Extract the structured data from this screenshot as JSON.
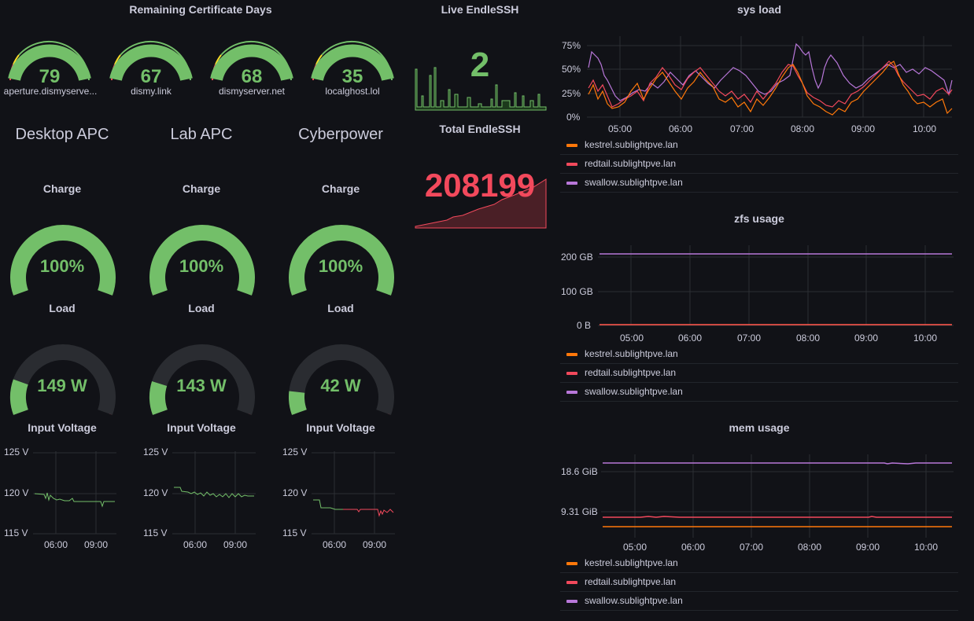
{
  "cert": {
    "title": "Remaining Certificate Days",
    "items": [
      {
        "label": "aperture.dismyserve...",
        "value": "79",
        "level": 79
      },
      {
        "label": "dismy.link",
        "value": "67",
        "level": 67
      },
      {
        "label": "dismyserver.net",
        "value": "68",
        "level": 68
      },
      {
        "label": "localghost.lol",
        "value": "35",
        "level": 35
      }
    ]
  },
  "ups": [
    {
      "name": "Desktop APC",
      "charge_label": "Charge",
      "charge_value": "100%",
      "charge_level": 100,
      "load_label": "Load",
      "load_value": "149 W",
      "load_level": 0.18,
      "voltage_label": "Input Voltage"
    },
    {
      "name": "Lab APC",
      "charge_label": "Charge",
      "charge_value": "100%",
      "charge_level": 100,
      "load_label": "Load",
      "load_value": "143 W",
      "load_level": 0.17,
      "voltage_label": "Input Voltage"
    },
    {
      "name": "Cyberpower",
      "charge_label": "Charge",
      "charge_value": "100%",
      "charge_level": 100,
      "load_label": "Load",
      "load_value": "42 W",
      "load_level": 0.12,
      "voltage_label": "Input Voltage"
    }
  ],
  "voltage_axis": {
    "y_ticks": [
      "125 V",
      "120 V",
      "115 V"
    ],
    "x_ticks": [
      "06:00",
      "09:00"
    ]
  },
  "endlessh": {
    "live_title": "Live EndleSSH",
    "live_value": "2",
    "total_title": "Total EndleSSH",
    "total_value": "208199"
  },
  "legend": [
    "kestrel.sublightpve.lan",
    "redtail.sublightpve.lan",
    "swallow.sublightpve.lan"
  ],
  "colors": {
    "kestrel": "#ff780a",
    "redtail": "#f2495c",
    "swallow": "#b877d9",
    "green": "#73bf69",
    "yellow": "#fade2a",
    "red": "#f2495c"
  },
  "sysload": {
    "title": "sys load",
    "y_ticks": [
      "75%",
      "50%",
      "25%",
      "0%"
    ],
    "x_ticks": [
      "05:00",
      "06:00",
      "07:00",
      "08:00",
      "09:00",
      "10:00"
    ]
  },
  "zfs": {
    "title": "zfs usage",
    "y_ticks": [
      "200 GB",
      "100 GB",
      "0 B"
    ],
    "x_ticks": [
      "05:00",
      "06:00",
      "07:00",
      "08:00",
      "09:00",
      "10:00"
    ]
  },
  "mem": {
    "title": "mem usage",
    "y_ticks": [
      "18.6 GiB",
      "9.31 GiB"
    ],
    "x_ticks": [
      "05:00",
      "06:00",
      "07:00",
      "08:00",
      "09:00",
      "10:00"
    ]
  }
}
